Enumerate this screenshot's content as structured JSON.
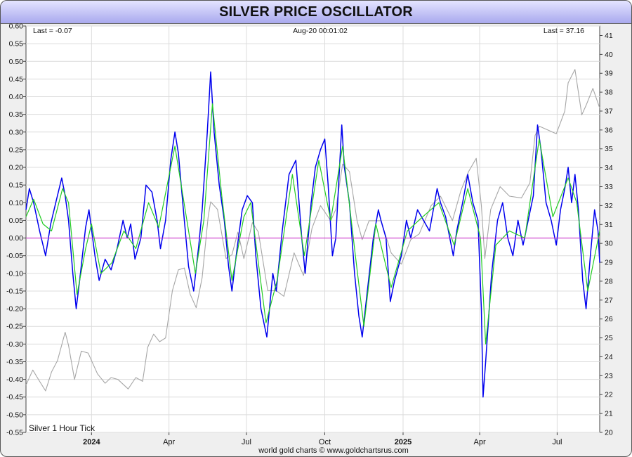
{
  "title": "SILVER PRICE OSCILLATOR",
  "header": {
    "last_left": "Last = -0.07",
    "timestamp": "Aug-20  00:01:02",
    "last_right": "Last = 37.16"
  },
  "series_label": "Silver 1 Hour Tick",
  "credit": "world gold charts © www.goldchartsrus.com",
  "colors": {
    "oscillator": "#0000ee",
    "signal": "#22cc22",
    "price": "#a6a6a6",
    "zero_line": "#cc33cc",
    "grid": "#dcdcdc",
    "plot_bg": "#ffffff"
  },
  "chart_data": {
    "type": "line",
    "grid": true,
    "x_range": [
      "2023-10-16",
      "2025-08-20"
    ],
    "x_ticks": [
      {
        "date": "2024-01-01",
        "label": "2024",
        "bold": true
      },
      {
        "date": "2024-04-01",
        "label": "Apr",
        "bold": false
      },
      {
        "date": "2024-07-01",
        "label": "Jul",
        "bold": false
      },
      {
        "date": "2024-10-01",
        "label": "Oct",
        "bold": false
      },
      {
        "date": "2025-01-01",
        "label": "2025",
        "bold": true
      },
      {
        "date": "2025-04-01",
        "label": "Apr",
        "bold": false
      },
      {
        "date": "2025-07-01",
        "label": "Jul",
        "bold": false
      }
    ],
    "y_left": {
      "min": -0.55,
      "max": 0.6,
      "ticks": [
        "0.60",
        "0.55",
        "0.50",
        "0.45",
        "0.40",
        "0.35",
        "0.30",
        "0.25",
        "0.20",
        "0.15",
        "0.10",
        "0.05",
        "0.00",
        "-0.05",
        "-0.10",
        "-0.15",
        "-0.20",
        "-0.25",
        "-0.30",
        "-0.35",
        "-0.40",
        "-0.45",
        "-0.50",
        "-0.55"
      ]
    },
    "y_right": {
      "min": 20,
      "max": 41.5,
      "ticks": [
        "41",
        "40",
        "39",
        "38",
        "37",
        "36",
        "35",
        "34",
        "33",
        "32",
        "31",
        "30",
        "29",
        "28",
        "27",
        "26",
        "25",
        "24",
        "23",
        "22",
        "21",
        "20"
      ]
    },
    "series": [
      {
        "key": "oscillator",
        "axis": "left",
        "points": [
          [
            "2023-10-16",
            0.08
          ],
          [
            "2023-10-20",
            0.14
          ],
          [
            "2023-10-25",
            0.1
          ],
          [
            "2023-11-01",
            0.02
          ],
          [
            "2023-11-08",
            -0.05
          ],
          [
            "2023-11-14",
            0.04
          ],
          [
            "2023-11-20",
            0.1
          ],
          [
            "2023-11-27",
            0.17
          ],
          [
            "2023-12-01",
            0.12
          ],
          [
            "2023-12-05",
            0.05
          ],
          [
            "2023-12-10",
            -0.1
          ],
          [
            "2023-12-14",
            -0.2
          ],
          [
            "2023-12-18",
            -0.12
          ],
          [
            "2023-12-25",
            0.03
          ],
          [
            "2023-12-29",
            0.08
          ],
          [
            "2024-01-05",
            -0.05
          ],
          [
            "2024-01-10",
            -0.12
          ],
          [
            "2024-01-17",
            -0.06
          ],
          [
            "2024-01-24",
            -0.09
          ],
          [
            "2024-01-31",
            -0.03
          ],
          [
            "2024-02-07",
            0.05
          ],
          [
            "2024-02-12",
            0.0
          ],
          [
            "2024-02-16",
            0.04
          ],
          [
            "2024-02-21",
            -0.06
          ],
          [
            "2024-02-28",
            0.0
          ],
          [
            "2024-03-05",
            0.15
          ],
          [
            "2024-03-12",
            0.13
          ],
          [
            "2024-03-18",
            0.05
          ],
          [
            "2024-03-22",
            -0.03
          ],
          [
            "2024-03-28",
            0.05
          ],
          [
            "2024-04-03",
            0.22
          ],
          [
            "2024-04-08",
            0.3
          ],
          [
            "2024-04-12",
            0.24
          ],
          [
            "2024-04-19",
            0.05
          ],
          [
            "2024-04-24",
            -0.08
          ],
          [
            "2024-04-30",
            -0.15
          ],
          [
            "2024-05-06",
            -0.02
          ],
          [
            "2024-05-10",
            0.08
          ],
          [
            "2024-05-16",
            0.3
          ],
          [
            "2024-05-20",
            0.47
          ],
          [
            "2024-05-24",
            0.3
          ],
          [
            "2024-05-30",
            0.15
          ],
          [
            "2024-06-05",
            0.05
          ],
          [
            "2024-06-10",
            -0.08
          ],
          [
            "2024-06-14",
            -0.15
          ],
          [
            "2024-06-20",
            -0.03
          ],
          [
            "2024-06-26",
            0.08
          ],
          [
            "2024-07-02",
            0.12
          ],
          [
            "2024-07-08",
            0.1
          ],
          [
            "2024-07-12",
            -0.05
          ],
          [
            "2024-07-18",
            -0.2
          ],
          [
            "2024-07-25",
            -0.28
          ],
          [
            "2024-08-01",
            -0.1
          ],
          [
            "2024-08-05",
            -0.15
          ],
          [
            "2024-08-12",
            0.02
          ],
          [
            "2024-08-20",
            0.18
          ],
          [
            "2024-08-28",
            0.22
          ],
          [
            "2024-09-04",
            0.0
          ],
          [
            "2024-09-08",
            -0.1
          ],
          [
            "2024-09-15",
            0.1
          ],
          [
            "2024-09-20",
            0.2
          ],
          [
            "2024-09-26",
            0.25
          ],
          [
            "2024-10-01",
            0.28
          ],
          [
            "2024-10-05",
            0.15
          ],
          [
            "2024-10-10",
            -0.05
          ],
          [
            "2024-10-14",
            0.0
          ],
          [
            "2024-10-21",
            0.32
          ],
          [
            "2024-10-24",
            0.2
          ],
          [
            "2024-10-30",
            0.1
          ],
          [
            "2024-11-05",
            -0.1
          ],
          [
            "2024-11-10",
            -0.22
          ],
          [
            "2024-11-14",
            -0.28
          ],
          [
            "2024-11-20",
            -0.15
          ],
          [
            "2024-11-27",
            0.0
          ],
          [
            "2024-12-03",
            0.08
          ],
          [
            "2024-12-06",
            0.05
          ],
          [
            "2024-12-12",
            0.0
          ],
          [
            "2024-12-17",
            -0.18
          ],
          [
            "2024-12-22",
            -0.12
          ],
          [
            "2024-12-30",
            -0.05
          ],
          [
            "2025-01-05",
            0.05
          ],
          [
            "2025-01-10",
            0.0
          ],
          [
            "2025-01-18",
            0.08
          ],
          [
            "2025-01-25",
            0.05
          ],
          [
            "2025-02-01",
            0.02
          ],
          [
            "2025-02-10",
            0.14
          ],
          [
            "2025-02-14",
            0.1
          ],
          [
            "2025-02-20",
            0.06
          ],
          [
            "2025-03-01",
            -0.05
          ],
          [
            "2025-03-05",
            0.02
          ],
          [
            "2025-03-12",
            0.1
          ],
          [
            "2025-03-18",
            0.18
          ],
          [
            "2025-03-24",
            0.1
          ],
          [
            "2025-03-30",
            0.05
          ],
          [
            "2025-04-03",
            -0.2
          ],
          [
            "2025-04-05",
            -0.45
          ],
          [
            "2025-04-08",
            -0.35
          ],
          [
            "2025-04-15",
            -0.1
          ],
          [
            "2025-04-22",
            0.05
          ],
          [
            "2025-04-28",
            0.1
          ],
          [
            "2025-05-04",
            0.0
          ],
          [
            "2025-05-10",
            -0.05
          ],
          [
            "2025-05-16",
            0.05
          ],
          [
            "2025-05-22",
            -0.02
          ],
          [
            "2025-05-28",
            0.05
          ],
          [
            "2025-06-03",
            0.12
          ],
          [
            "2025-06-08",
            0.32
          ],
          [
            "2025-06-12",
            0.25
          ],
          [
            "2025-06-18",
            0.1
          ],
          [
            "2025-06-24",
            0.05
          ],
          [
            "2025-06-30",
            -0.02
          ],
          [
            "2025-07-05",
            0.08
          ],
          [
            "2025-07-10",
            0.14
          ],
          [
            "2025-07-14",
            0.2
          ],
          [
            "2025-07-18",
            0.1
          ],
          [
            "2025-07-22",
            0.18
          ],
          [
            "2025-07-26",
            0.08
          ],
          [
            "2025-07-31",
            -0.12
          ],
          [
            "2025-08-04",
            -0.2
          ],
          [
            "2025-08-09",
            -0.05
          ],
          [
            "2025-08-14",
            0.08
          ],
          [
            "2025-08-18",
            0.02
          ],
          [
            "2025-08-20",
            -0.07
          ]
        ]
      },
      {
        "key": "signal",
        "axis": "left",
        "points": [
          [
            "2023-10-16",
            0.06
          ],
          [
            "2023-10-25",
            0.11
          ],
          [
            "2023-11-05",
            0.04
          ],
          [
            "2023-11-15",
            0.02
          ],
          [
            "2023-11-28",
            0.14
          ],
          [
            "2023-12-05",
            0.1
          ],
          [
            "2023-12-15",
            -0.16
          ],
          [
            "2023-12-25",
            -0.03
          ],
          [
            "2024-01-01",
            0.04
          ],
          [
            "2024-01-12",
            -0.1
          ],
          [
            "2024-01-25",
            -0.07
          ],
          [
            "2024-02-08",
            0.02
          ],
          [
            "2024-02-22",
            -0.03
          ],
          [
            "2024-03-08",
            0.1
          ],
          [
            "2024-03-20",
            0.03
          ],
          [
            "2024-04-08",
            0.26
          ],
          [
            "2024-04-20",
            0.08
          ],
          [
            "2024-05-02",
            -0.1
          ],
          [
            "2024-05-12",
            0.05
          ],
          [
            "2024-05-22",
            0.38
          ],
          [
            "2024-06-02",
            0.12
          ],
          [
            "2024-06-14",
            -0.12
          ],
          [
            "2024-06-28",
            0.06
          ],
          [
            "2024-07-06",
            0.1
          ],
          [
            "2024-07-24",
            -0.24
          ],
          [
            "2024-08-06",
            -0.12
          ],
          [
            "2024-08-24",
            0.18
          ],
          [
            "2024-09-07",
            -0.05
          ],
          [
            "2024-09-24",
            0.22
          ],
          [
            "2024-10-08",
            0.05
          ],
          [
            "2024-10-22",
            0.26
          ],
          [
            "2024-11-06",
            -0.05
          ],
          [
            "2024-11-16",
            -0.25
          ],
          [
            "2024-11-30",
            0.04
          ],
          [
            "2024-12-18",
            -0.14
          ],
          [
            "2025-01-06",
            0.02
          ],
          [
            "2025-01-24",
            0.06
          ],
          [
            "2025-02-12",
            0.1
          ],
          [
            "2025-03-02",
            -0.02
          ],
          [
            "2025-03-18",
            0.14
          ],
          [
            "2025-04-02",
            0.0
          ],
          [
            "2025-04-08",
            -0.3
          ],
          [
            "2025-04-20",
            -0.02
          ],
          [
            "2025-05-06",
            0.02
          ],
          [
            "2025-05-24",
            0.0
          ],
          [
            "2025-06-10",
            0.28
          ],
          [
            "2025-06-26",
            0.06
          ],
          [
            "2025-07-14",
            0.17
          ],
          [
            "2025-07-24",
            0.1
          ],
          [
            "2025-08-06",
            -0.15
          ],
          [
            "2025-08-20",
            0.02
          ]
        ]
      },
      {
        "key": "price",
        "axis": "right",
        "points": [
          [
            "2023-10-16",
            22.5
          ],
          [
            "2023-10-24",
            23.3
          ],
          [
            "2023-11-01",
            22.7
          ],
          [
            "2023-11-08",
            22.2
          ],
          [
            "2023-11-15",
            23.2
          ],
          [
            "2023-11-22",
            23.8
          ],
          [
            "2023-12-01",
            25.3
          ],
          [
            "2023-12-05",
            24.6
          ],
          [
            "2023-12-12",
            22.8
          ],
          [
            "2023-12-20",
            24.3
          ],
          [
            "2023-12-28",
            24.2
          ],
          [
            "2024-01-08",
            23.1
          ],
          [
            "2024-01-17",
            22.6
          ],
          [
            "2024-01-24",
            22.9
          ],
          [
            "2024-02-01",
            22.8
          ],
          [
            "2024-02-13",
            22.3
          ],
          [
            "2024-02-22",
            22.9
          ],
          [
            "2024-03-01",
            22.7
          ],
          [
            "2024-03-07",
            24.5
          ],
          [
            "2024-03-14",
            25.2
          ],
          [
            "2024-03-21",
            24.8
          ],
          [
            "2024-03-28",
            25.0
          ],
          [
            "2024-04-05",
            27.5
          ],
          [
            "2024-04-12",
            28.6
          ],
          [
            "2024-04-19",
            28.7
          ],
          [
            "2024-04-26",
            27.3
          ],
          [
            "2024-05-03",
            26.6
          ],
          [
            "2024-05-10",
            28.2
          ],
          [
            "2024-05-17",
            31.4
          ],
          [
            "2024-05-20",
            32.2
          ],
          [
            "2024-05-28",
            31.8
          ],
          [
            "2024-06-07",
            29.2
          ],
          [
            "2024-06-14",
            29.4
          ],
          [
            "2024-06-21",
            30.6
          ],
          [
            "2024-06-28",
            29.2
          ],
          [
            "2024-07-08",
            31.1
          ],
          [
            "2024-07-15",
            30.6
          ],
          [
            "2024-07-26",
            27.5
          ],
          [
            "2024-08-05",
            27.5
          ],
          [
            "2024-08-14",
            27.2
          ],
          [
            "2024-08-26",
            29.5
          ],
          [
            "2024-09-06",
            28.3
          ],
          [
            "2024-09-16",
            30.8
          ],
          [
            "2024-09-26",
            32.0
          ],
          [
            "2024-10-08",
            31.2
          ],
          [
            "2024-10-14",
            31.8
          ],
          [
            "2024-10-22",
            34.2
          ],
          [
            "2024-10-30",
            33.8
          ],
          [
            "2024-11-08",
            31.2
          ],
          [
            "2024-11-14",
            30.2
          ],
          [
            "2024-11-22",
            31.2
          ],
          [
            "2024-12-06",
            31.2
          ],
          [
            "2024-12-18",
            29.5
          ],
          [
            "2024-12-30",
            28.9
          ],
          [
            "2025-01-10",
            30.2
          ],
          [
            "2025-01-20",
            30.5
          ],
          [
            "2025-02-03",
            32.0
          ],
          [
            "2025-02-14",
            32.5
          ],
          [
            "2025-02-28",
            31.2
          ],
          [
            "2025-03-10",
            32.8
          ],
          [
            "2025-03-19",
            33.8
          ],
          [
            "2025-03-28",
            34.5
          ],
          [
            "2025-04-03",
            32.0
          ],
          [
            "2025-04-07",
            29.2
          ],
          [
            "2025-04-14",
            31.8
          ],
          [
            "2025-04-25",
            33.0
          ],
          [
            "2025-05-06",
            32.5
          ],
          [
            "2025-05-20",
            32.4
          ],
          [
            "2025-05-30",
            33.2
          ],
          [
            "2025-06-05",
            35.7
          ],
          [
            "2025-06-10",
            36.2
          ],
          [
            "2025-06-20",
            36.0
          ],
          [
            "2025-06-30",
            35.8
          ],
          [
            "2025-07-10",
            37.0
          ],
          [
            "2025-07-14",
            38.5
          ],
          [
            "2025-07-22",
            39.2
          ],
          [
            "2025-07-30",
            36.8
          ],
          [
            "2025-08-04",
            37.3
          ],
          [
            "2025-08-12",
            38.2
          ],
          [
            "2025-08-20",
            37.16
          ]
        ]
      }
    ],
    "reference_line": {
      "axis": "left",
      "value": 0.0
    }
  }
}
